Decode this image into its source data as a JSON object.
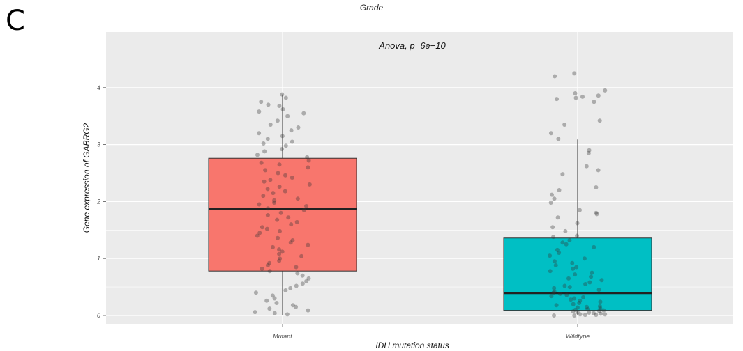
{
  "panel_label": "C",
  "top_label": "Grade",
  "colors": {
    "mutant": "#f8766d",
    "wildtype": "#00bfc4",
    "panel": "#ebebeb",
    "grid": "#ffffff",
    "points": "#333333"
  },
  "chart_data": {
    "type": "box",
    "title": "",
    "annotation": "Anova, p=6e−10",
    "xlabel": "IDH mutation status",
    "ylabel": "Gene expression of GABRG2",
    "ylim": [
      -0.1,
      4.45
    ],
    "yticks": [
      0,
      1,
      2,
      3,
      4
    ],
    "ytick_labels": [
      "0",
      "1",
      "2",
      "3",
      "4"
    ],
    "grid": true,
    "categories": [
      "Mutant",
      "Wildtype"
    ],
    "boxes": [
      {
        "name": "Mutant",
        "q1": 0.78,
        "median": 1.87,
        "q3": 2.76,
        "whisker_low": 0.01,
        "whisker_high": 3.88,
        "color": "#f8766d",
        "points": [
          3.88,
          3.82,
          3.75,
          3.7,
          3.68,
          3.62,
          3.58,
          3.55,
          3.5,
          3.42,
          3.35,
          3.3,
          3.25,
          3.2,
          3.15,
          3.1,
          3.05,
          3.02,
          2.98,
          2.92,
          2.88,
          2.82,
          2.78,
          2.72,
          2.68,
          2.65,
          2.6,
          2.55,
          2.5,
          2.46,
          2.42,
          2.38,
          2.35,
          2.3,
          2.26,
          2.22,
          2.18,
          2.15,
          2.1,
          2.05,
          2.02,
          1.98,
          1.95,
          1.92,
          1.88,
          1.85,
          1.8,
          1.76,
          1.72,
          1.68,
          1.64,
          1.6,
          1.55,
          1.52,
          1.48,
          1.45,
          1.4,
          1.36,
          1.32,
          1.28,
          1.24,
          1.2,
          1.16,
          1.12,
          1.08,
          1.04,
          1.0,
          0.96,
          0.92,
          0.88,
          0.85,
          0.82,
          0.78,
          0.74,
          0.7,
          0.65,
          0.6,
          0.56,
          0.52,
          0.48,
          0.44,
          0.4,
          0.35,
          0.3,
          0.26,
          0.22,
          0.18,
          0.15,
          0.12,
          0.09,
          0.06,
          0.04,
          0.02
        ]
      },
      {
        "name": "Wildtype",
        "q1": 0.09,
        "median": 0.39,
        "q3": 1.36,
        "whisker_low": 0.0,
        "whisker_high": 3.09,
        "color": "#00bfc4",
        "points": [
          4.25,
          4.2,
          3.95,
          3.9,
          3.86,
          3.84,
          3.82,
          3.8,
          3.75,
          3.42,
          3.35,
          3.2,
          3.1,
          2.9,
          2.85,
          2.62,
          2.55,
          2.48,
          2.25,
          2.2,
          2.12,
          2.05,
          1.98,
          1.85,
          1.8,
          1.78,
          1.72,
          1.62,
          1.55,
          1.48,
          1.4,
          1.38,
          1.32,
          1.28,
          1.25,
          1.2,
          1.15,
          1.1,
          1.05,
          1.0,
          0.95,
          0.92,
          0.88,
          0.85,
          0.82,
          0.78,
          0.75,
          0.72,
          0.68,
          0.65,
          0.62,
          0.58,
          0.55,
          0.52,
          0.5,
          0.48,
          0.45,
          0.42,
          0.4,
          0.38,
          0.36,
          0.34,
          0.32,
          0.3,
          0.28,
          0.26,
          0.24,
          0.22,
          0.2,
          0.18,
          0.16,
          0.15,
          0.14,
          0.12,
          0.11,
          0.1,
          0.09,
          0.08,
          0.07,
          0.06,
          0.05,
          0.04,
          0.03,
          0.02,
          0.02,
          0.01,
          0.01,
          0.0,
          0.0
        ]
      }
    ]
  }
}
